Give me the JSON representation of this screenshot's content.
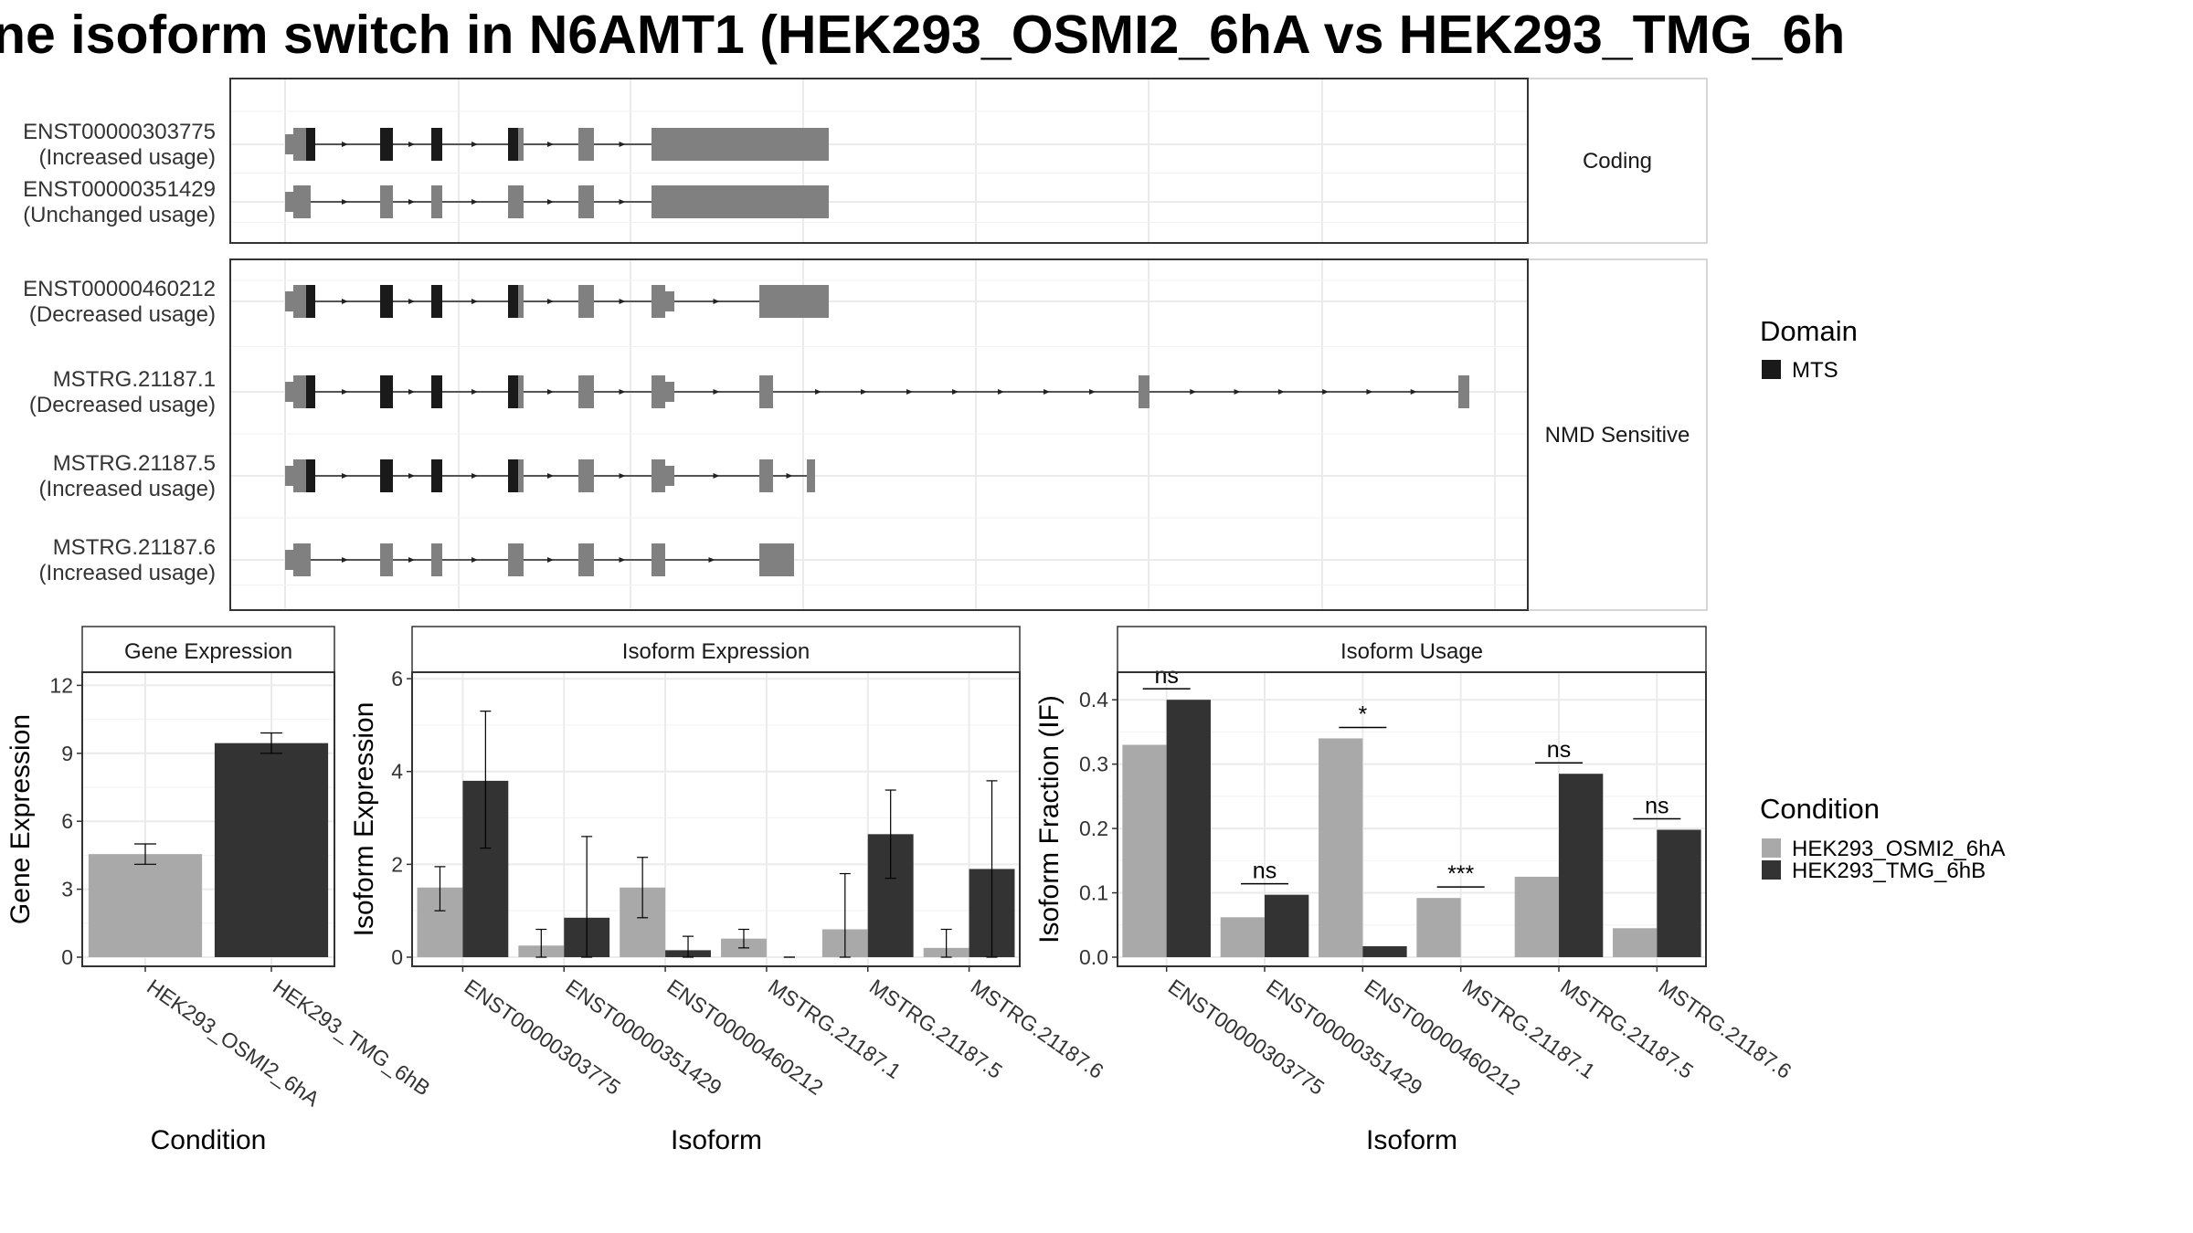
{
  "title": "ne isoform switch in N6AMT1 (HEK293_OSMI2_6hA vs HEK293_TMG_6h",
  "colors": {
    "cond_a": "#a9a9a9",
    "cond_b": "#333333",
    "exon": "#808080",
    "domain": "#1a1a1a",
    "grid": "#ebebeb"
  },
  "structure": {
    "facets": [
      {
        "label": "Coding",
        "isoforms": [
          {
            "id": "ENST00000303775",
            "usage": "(Increased usage)",
            "ext": "long",
            "domain": true
          },
          {
            "id": "ENST00000351429",
            "usage": "(Unchanged usage)",
            "ext": "long",
            "domain": false
          }
        ]
      },
      {
        "label": "NMD Sensitive",
        "isoforms": [
          {
            "id": "ENST00000460212",
            "usage": "(Decreased usage)",
            "ext": "e212",
            "domain": true
          },
          {
            "id": "MSTRG.21187.1",
            "usage": "(Decreased usage)",
            "ext": "e1",
            "domain": true
          },
          {
            "id": "MSTRG.21187.5",
            "usage": "(Increased usage)",
            "ext": "e5",
            "domain": true
          },
          {
            "id": "MSTRG.21187.6",
            "usage": "(Increased usage)",
            "ext": "e6",
            "domain": false
          }
        ]
      }
    ]
  },
  "legends": {
    "domain": {
      "title": "Domain",
      "items": [
        "MTS"
      ]
    },
    "condition": {
      "title": "Condition",
      "items": [
        "HEK293_OSMI2_6hA",
        "HEK293_TMG_6hB"
      ]
    }
  },
  "chart_data": [
    {
      "type": "bar",
      "title": "Gene Expression",
      "xlabel": "Condition",
      "ylabel": "Gene Expression",
      "ylim": [
        0,
        12.5
      ],
      "yticks": [
        0,
        3,
        6,
        9,
        12
      ],
      "categories": [
        "HEK293_OSMI2_6hA",
        "HEK293_TMG_6hB"
      ],
      "values": [
        4.55,
        9.45
      ],
      "error": [
        [
          4.1,
          5.0
        ],
        [
          9.0,
          9.9
        ]
      ]
    },
    {
      "type": "bar",
      "title": "Isoform Expression",
      "xlabel": "Isoform",
      "ylabel": "Isoform Expression",
      "ylim": [
        0,
        6.1
      ],
      "yticks": [
        0,
        2,
        4,
        6
      ],
      "categories": [
        "ENST00000303775",
        "ENST00000351429",
        "ENST00000460212",
        "MSTRG.21187.1",
        "MSTRG.21187.5",
        "MSTRG.21187.6"
      ],
      "series": [
        {
          "name": "HEK293_OSMI2_6hA",
          "values": [
            1.5,
            0.25,
            1.5,
            0.4,
            0.6,
            0.2
          ],
          "error": [
            [
              1.0,
              1.95
            ],
            [
              0.0,
              0.6
            ],
            [
              0.85,
              2.15
            ],
            [
              0.2,
              0.6
            ],
            [
              0.0,
              1.8
            ],
            [
              0.0,
              0.6
            ]
          ]
        },
        {
          "name": "HEK293_TMG_6hB",
          "values": [
            3.8,
            0.85,
            0.15,
            0.0,
            2.65,
            1.9
          ],
          "error": [
            [
              2.35,
              5.3
            ],
            [
              0.0,
              2.6
            ],
            [
              0.0,
              0.45
            ],
            [
              0.0,
              0.0
            ],
            [
              1.7,
              3.6
            ],
            [
              0.0,
              3.8
            ]
          ]
        }
      ]
    },
    {
      "type": "bar",
      "title": "Isoform Usage",
      "xlabel": "Isoform",
      "ylabel": "Isoform Fraction (IF)",
      "ylim": [
        0,
        0.44
      ],
      "yticks": [
        0.0,
        0.1,
        0.2,
        0.3,
        0.4
      ],
      "yticklabels": [
        "0.0",
        "0.1",
        "0.2",
        "0.3",
        "0.4"
      ],
      "categories": [
        "ENST00000303775",
        "ENST00000351429",
        "ENST00000460212",
        "MSTRG.21187.1",
        "MSTRG.21187.5",
        "MSTRG.21187.6"
      ],
      "series": [
        {
          "name": "HEK293_OSMI2_6hA",
          "values": [
            0.33,
            0.062,
            0.34,
            0.092,
            0.125,
            0.045
          ]
        },
        {
          "name": "HEK293_TMG_6hB",
          "values": [
            0.4,
            0.097,
            0.017,
            0.0,
            0.285,
            0.198
          ]
        }
      ],
      "significance": [
        "ns",
        "ns",
        "*",
        "***",
        "ns",
        "ns"
      ]
    }
  ]
}
